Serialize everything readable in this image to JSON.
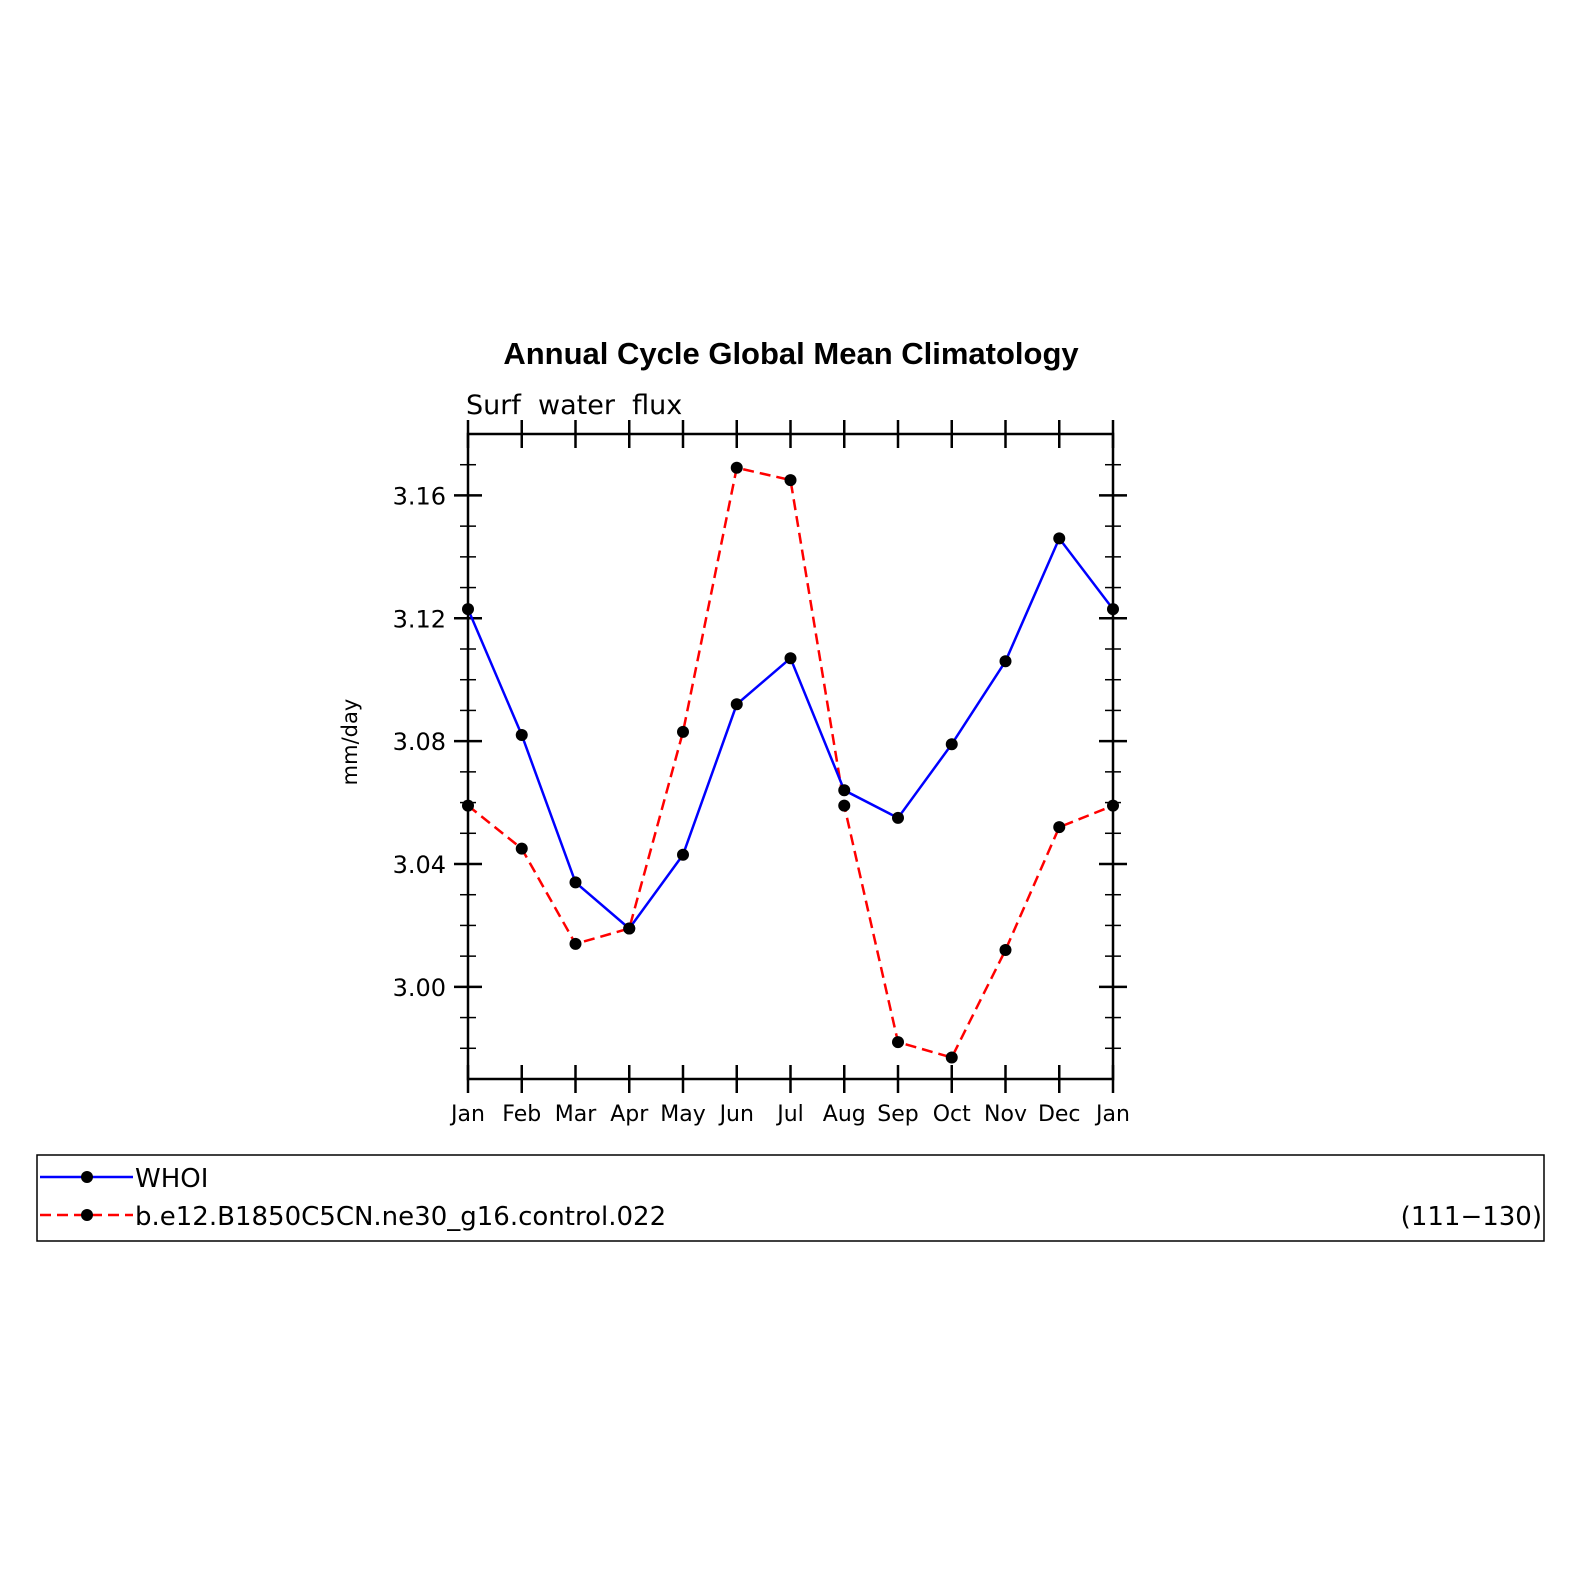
{
  "chart_data": {
    "type": "line",
    "title": "Annual Cycle Global Mean Climatology",
    "subtitle": "Surf  water  flux",
    "xlabel": "",
    "ylabel": "mm/day",
    "categories": [
      "Jan",
      "Feb",
      "Mar",
      "Apr",
      "May",
      "Jun",
      "Jul",
      "Aug",
      "Sep",
      "Oct",
      "Nov",
      "Dec",
      "Jan"
    ],
    "ylim": [
      2.97,
      3.18
    ],
    "yticks": [
      "3.00",
      "3.04",
      "3.08",
      "3.12",
      "3.16"
    ],
    "series": [
      {
        "name": "WHOI",
        "color": "#0000ff",
        "dash": "solid",
        "values": [
          3.123,
          3.082,
          3.034,
          3.019,
          3.043,
          3.092,
          3.107,
          3.064,
          3.055,
          3.079,
          3.106,
          3.146,
          3.123
        ]
      },
      {
        "name": "b.e12.B1850C5CN.ne30_g16.control.022",
        "color": "#ff0000",
        "dash": "dashed",
        "values": [
          3.059,
          3.045,
          3.014,
          3.019,
          3.083,
          3.169,
          3.165,
          3.059,
          2.982,
          2.977,
          3.012,
          3.052,
          3.059
        ]
      }
    ],
    "legend": {
      "placement": "bottom",
      "note": "(111−130)"
    },
    "grid": false
  }
}
